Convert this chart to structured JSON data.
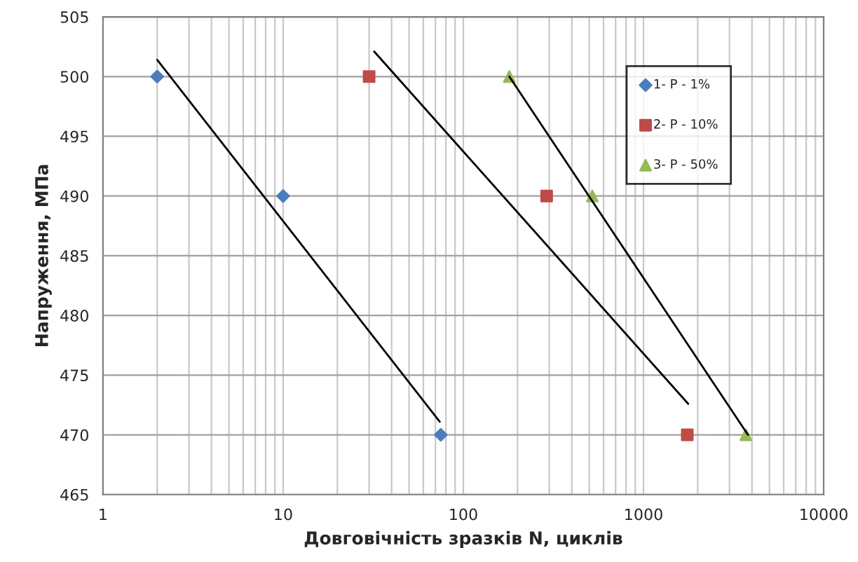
{
  "chart_data": {
    "type": "scatter",
    "xlabel": "Довговічність зразків N, циклів",
    "ylabel": "Напруження, МПа",
    "log": "x",
    "xlim": [
      1,
      10000
    ],
    "xticks": [
      1,
      10,
      100,
      1000,
      10000
    ],
    "ylim": [
      465,
      505
    ],
    "yticks": [
      465,
      470,
      475,
      480,
      485,
      490,
      495,
      500,
      505
    ],
    "grid": true,
    "legend": "top right",
    "series": [
      {
        "name": "1- P - 1%",
        "color": "#4a7ebb",
        "marker": "diamond",
        "x": [
          2,
          10,
          75
        ],
        "values": [
          500,
          490,
          470
        ]
      },
      {
        "name": "2- P - 10%",
        "color": "#be4b48",
        "marker": "square",
        "x": [
          30,
          290,
          1750
        ],
        "values": [
          500,
          490,
          470
        ]
      },
      {
        "name": "3- P - 50%",
        "color": "#98b954",
        "marker": "triangle",
        "x": [
          180,
          520,
          3700
        ],
        "values": [
          500,
          490,
          470
        ]
      },
      {
        "type": "line",
        "color": "#000000",
        "marker": "none",
        "x": [
          2,
          74
        ],
        "values": [
          501.4,
          471.1
        ]
      },
      {
        "type": "line",
        "color": "#000000",
        "marker": "none",
        "x": [
          32,
          1770
        ],
        "values": [
          502.1,
          472.6
        ]
      },
      {
        "type": "line",
        "color": "#000000",
        "marker": "none",
        "x": [
          180,
          3800
        ],
        "values": [
          500,
          470
        ]
      }
    ]
  }
}
